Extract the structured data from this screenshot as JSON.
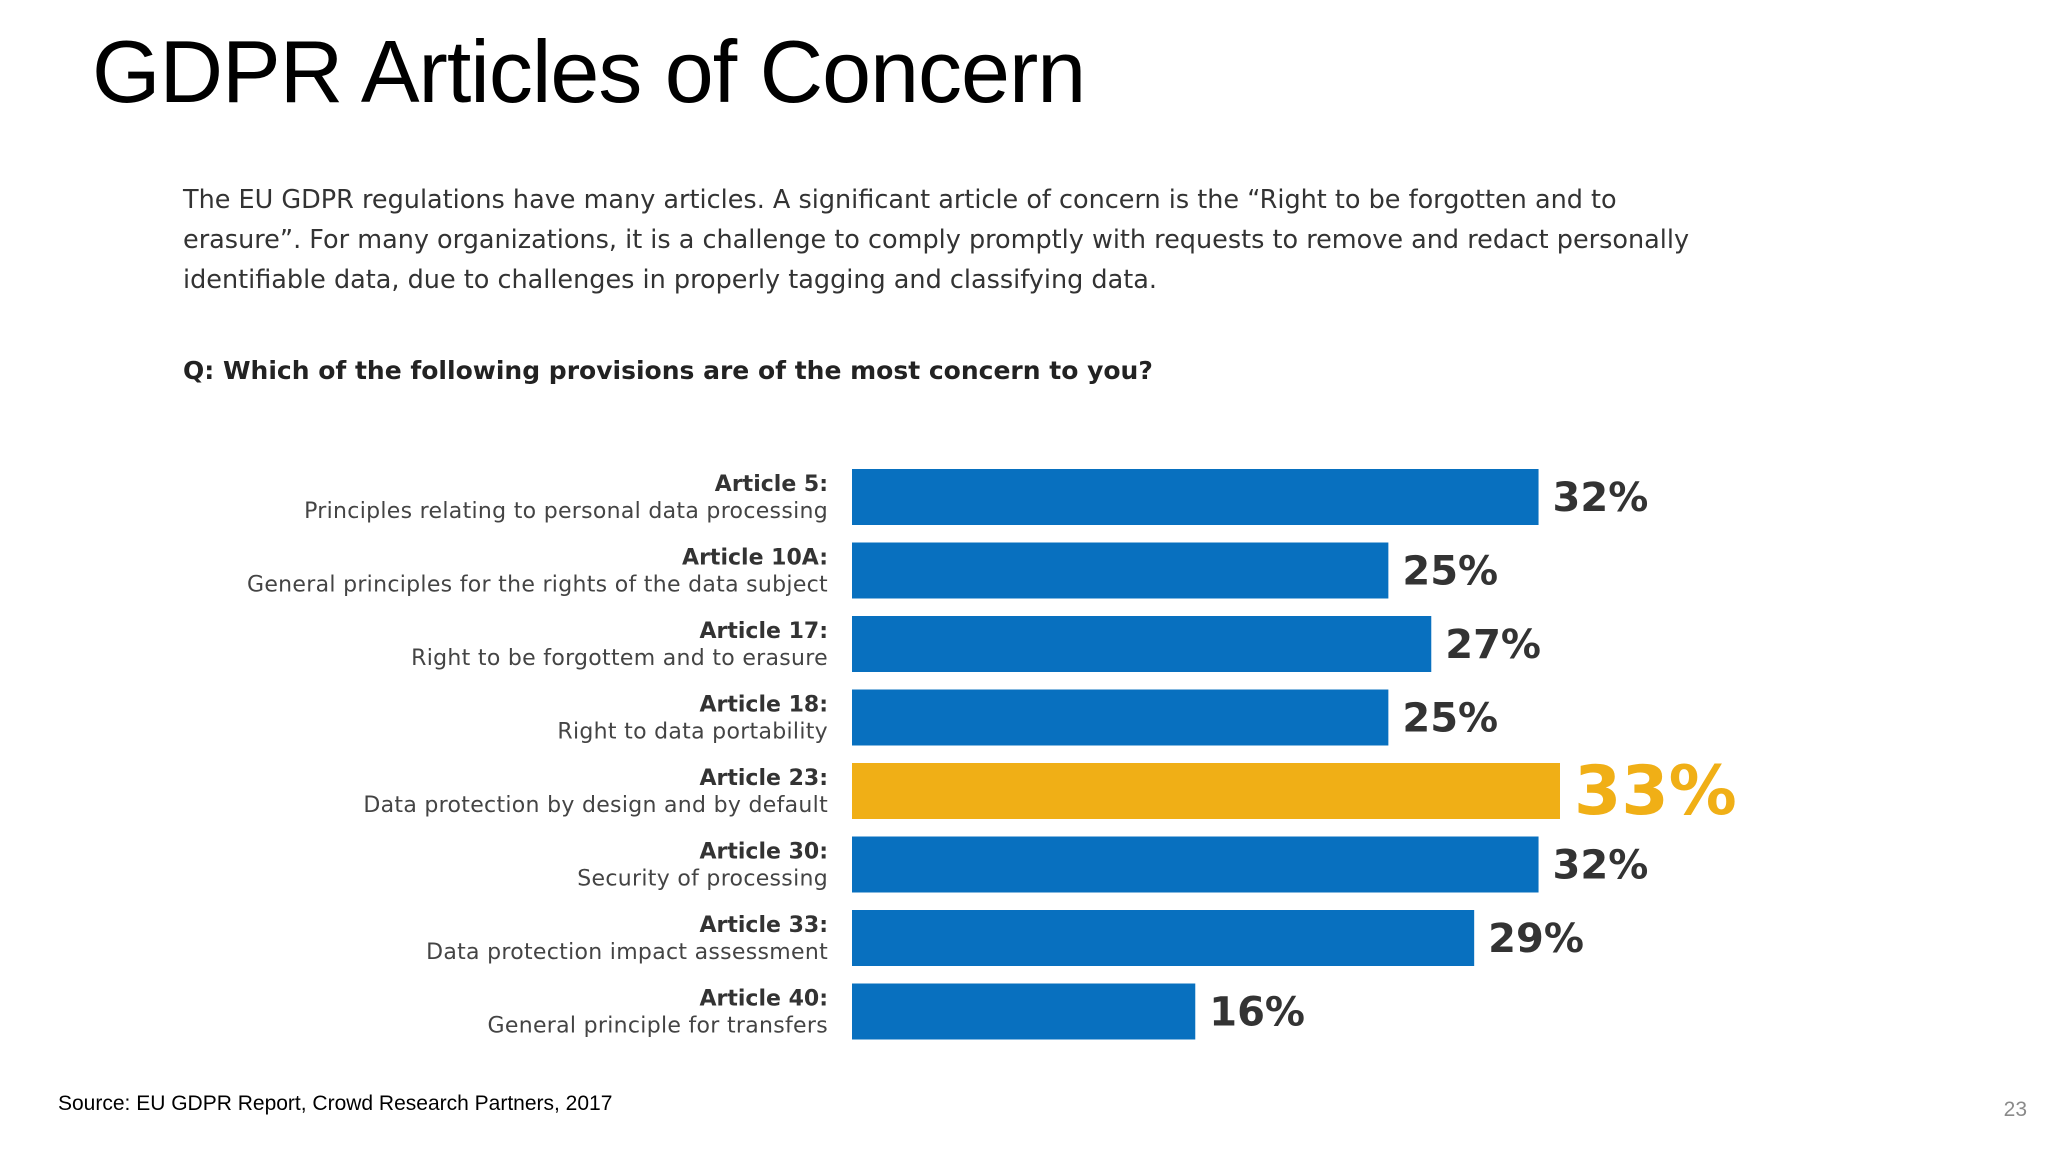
{
  "slide": {
    "title": "GDPR Articles of Concern",
    "intro_lines": [
      "The EU GDPR regulations have many articles. A significant article of concern is the “Right to be forgotten and to",
      "erasure”. For many organizations, it is a challenge to comply promptly with requests to remove and redact personally",
      "identifiable data, due to challenges in properly tagging and classifying data."
    ],
    "question": "Q: Which of the following provisions are of the most concern to you?",
    "source": "Source: EU GDPR Report, Crowd Research Partners, 2017",
    "page_number": "23"
  },
  "chart_data": {
    "type": "bar",
    "orientation": "horizontal",
    "title": "",
    "xlabel": "",
    "ylabel": "",
    "xlim": [
      0,
      33
    ],
    "grid": false,
    "legend": "none",
    "categories": [
      {
        "title": "Article 5:",
        "subtitle": "Principles relating to personal data processing"
      },
      {
        "title": "Article 10A:",
        "subtitle": "General principles for the rights of the data subject"
      },
      {
        "title": "Article 17:",
        "subtitle": "Right to be forgottem and to erasure"
      },
      {
        "title": "Article 18:",
        "subtitle": "Right to data portability"
      },
      {
        "title": "Article 23:",
        "subtitle": "Data protection by design and by default"
      },
      {
        "title": "Article 30:",
        "subtitle": "Security of processing"
      },
      {
        "title": "Article 33:",
        "subtitle": "Data protection impact assessment"
      },
      {
        "title": "Article 40:",
        "subtitle": "General principle for transfers"
      }
    ],
    "values": [
      32,
      25,
      27,
      25,
      33,
      32,
      29,
      16
    ],
    "value_labels": [
      "32%",
      "25%",
      "27%",
      "25%",
      "33%",
      "32%",
      "29%",
      "16%"
    ],
    "highlight_index": 4,
    "colors": {
      "bar": "#0870bf",
      "highlight": "#f0af16",
      "label": "#333333"
    }
  }
}
